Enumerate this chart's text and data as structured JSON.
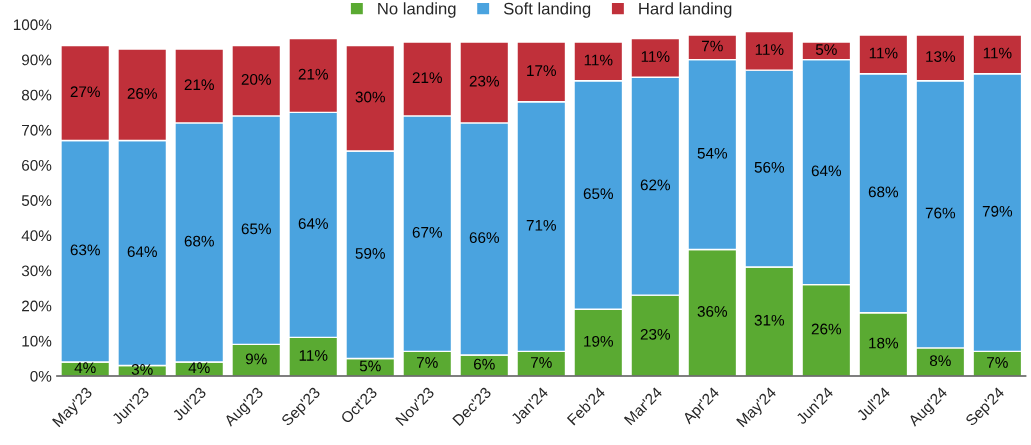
{
  "chart_data": {
    "type": "bar",
    "stacked": true,
    "categories": [
      "May'23",
      "Jun'23",
      "Jul'23",
      "Aug'23",
      "Sep'23",
      "Oct'23",
      "Nov'23",
      "Dec'23",
      "Jan'24",
      "Feb'24",
      "Mar'24",
      "Apr'24",
      "May'24",
      "Jun'24",
      "Jul'24",
      "Aug'24",
      "Sep'24"
    ],
    "series": [
      {
        "name": "No landing",
        "color": "#5aaa32",
        "values": [
          4,
          3,
          4,
          9,
          11,
          5,
          7,
          6,
          7,
          19,
          23,
          36,
          31,
          26,
          18,
          8,
          7
        ],
        "value_labels": [
          "4%",
          "3%",
          "4%",
          "9%",
          "11%",
          "5%",
          "7%",
          "6%",
          "7%",
          "19%",
          "23%",
          "36%",
          "31%",
          "26%",
          "18%",
          "8%",
          "7%"
        ]
      },
      {
        "name": "Soft landing",
        "color": "#4aa3df",
        "values": [
          63,
          64,
          68,
          65,
          64,
          59,
          67,
          66,
          71,
          65,
          62,
          54,
          56,
          64,
          68,
          76,
          79
        ],
        "value_labels": [
          "63%",
          "64%",
          "68%",
          "65%",
          "64%",
          "59%",
          "67%",
          "66%",
          "71%",
          "65%",
          "62%",
          "54%",
          "56%",
          "64%",
          "68%",
          "76%",
          "79%"
        ]
      },
      {
        "name": "Hard landing",
        "color": "#c0303a",
        "values": [
          27,
          26,
          21,
          20,
          21,
          30,
          21,
          23,
          17,
          11,
          11,
          7,
          11,
          5,
          11,
          13,
          11
        ],
        "value_labels": [
          "27%",
          "26%",
          "21%",
          "20%",
          "21%",
          "30%",
          "21%",
          "23%",
          "17%",
          "11%",
          "11%",
          "7%",
          "11%",
          "5%",
          "11%",
          "13%",
          "11%"
        ]
      }
    ],
    "ylim": [
      0,
      100
    ],
    "yticks": [
      {
        "value": 0,
        "label": "0%"
      },
      {
        "value": 10,
        "label": "10%"
      },
      {
        "value": 20,
        "label": "20%"
      },
      {
        "value": 30,
        "label": "30%"
      },
      {
        "value": 40,
        "label": "40%"
      },
      {
        "value": 50,
        "label": "50%"
      },
      {
        "value": 60,
        "label": "60%"
      },
      {
        "value": 70,
        "label": "70%"
      },
      {
        "value": 80,
        "label": "80%"
      },
      {
        "value": 90,
        "label": "90%"
      },
      {
        "value": 100,
        "label": "100%"
      }
    ],
    "grid": false,
    "legend": "top"
  }
}
